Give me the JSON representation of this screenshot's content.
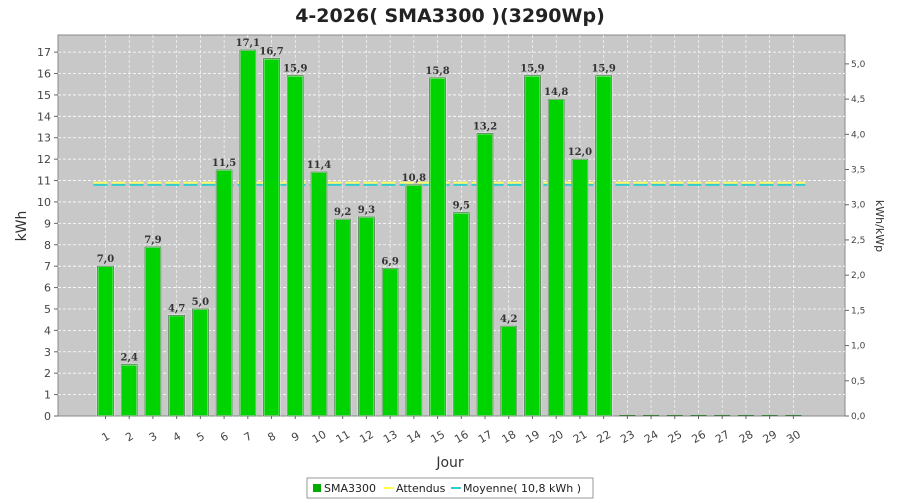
{
  "chart_data": {
    "type": "bar",
    "title": "4-2026( SMA3300 )(3290Wp)",
    "xlabel": "Jour",
    "ylabel": "kWh",
    "ylabel_right": "kWh/kWp",
    "ylim": [
      0,
      17.8
    ],
    "ylim_right": [
      0,
      5.41
    ],
    "yticks": [
      0,
      1,
      2,
      3,
      4,
      5,
      6,
      7,
      8,
      9,
      10,
      11,
      12,
      13,
      14,
      15,
      16,
      17
    ],
    "yticks_right": [
      "0,0",
      "0,5",
      "1,0",
      "1,5",
      "2,0",
      "2,5",
      "3,0",
      "3,5",
      "4,0",
      "4,5",
      "5,0"
    ],
    "categories": [
      "1",
      "2",
      "3",
      "4",
      "5",
      "6",
      "7",
      "8",
      "9",
      "10",
      "11",
      "12",
      "13",
      "14",
      "15",
      "16",
      "17",
      "18",
      "19",
      "20",
      "21",
      "22",
      "23",
      "24",
      "25",
      "26",
      "27",
      "28",
      "29",
      "30"
    ],
    "series": [
      {
        "name": "SMA3300",
        "color": "#00d400",
        "values": [
          7.0,
          2.4,
          7.9,
          4.7,
          5.0,
          11.5,
          17.1,
          16.7,
          15.9,
          11.4,
          9.2,
          9.3,
          6.9,
          10.8,
          15.8,
          9.5,
          13.2,
          4.2,
          15.9,
          14.8,
          12.0,
          15.9,
          0,
          0,
          0,
          0,
          0,
          0,
          0,
          0
        ],
        "labels": [
          "7,0",
          "2,4",
          "7,9",
          "4,7",
          "5,0",
          "11,5",
          "17,1",
          "16,7",
          "15,9",
          "11,4",
          "9,2",
          "9,3",
          "6,9",
          "10,8",
          "15,8",
          "9,5",
          "13,2",
          "4,2",
          "15,9",
          "14,8",
          "12,0",
          "15,9",
          "",
          "",
          "",
          "",
          "",
          "",
          "",
          ""
        ]
      },
      {
        "name": "Attendus",
        "color": "#ffff66",
        "value": 10.9
      },
      {
        "name": "Moyenne( 10,8 kWh )",
        "color": "#33cccc",
        "value": 10.8
      }
    ],
    "grid": true,
    "legend_position": "bottom"
  }
}
